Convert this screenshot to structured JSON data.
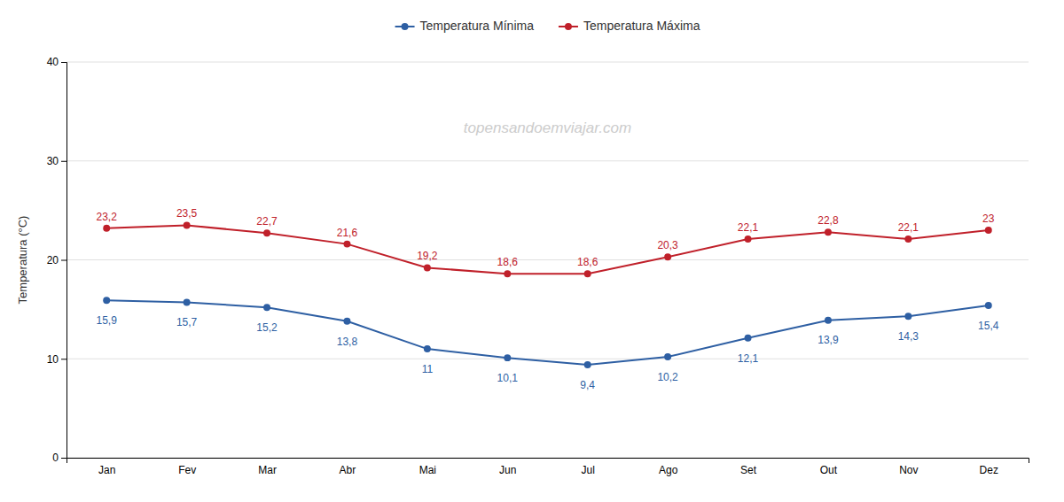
{
  "chart_data": {
    "type": "line",
    "categories": [
      "Jan",
      "Fev",
      "Mar",
      "Abr",
      "Mai",
      "Jun",
      "Jul",
      "Ago",
      "Set",
      "Out",
      "Nov",
      "Dez"
    ],
    "series": [
      {
        "name": "Temperatura Mínima",
        "color": "#2E5FA3",
        "marker": "circle",
        "values": [
          15.9,
          15.7,
          15.2,
          13.8,
          11.0,
          10.1,
          9.4,
          10.2,
          12.1,
          13.9,
          14.3,
          15.4
        ],
        "value_labels": [
          "15,9",
          "15,7",
          "15,2",
          "13,8",
          "11",
          "10,1",
          "9,4",
          "10,2",
          "12,1",
          "13,9",
          "14,3",
          "15,4"
        ]
      },
      {
        "name": "Temperatura Máxima",
        "color": "#C0202A",
        "marker": "circle",
        "values": [
          23.2,
          23.5,
          22.7,
          21.6,
          19.2,
          18.6,
          18.6,
          20.3,
          22.1,
          22.8,
          22.1,
          23.0
        ],
        "value_labels": [
          "23,2",
          "23,5",
          "22,7",
          "21,6",
          "19,2",
          "18,6",
          "18,6",
          "20,3",
          "22,1",
          "22,8",
          "22,1",
          "23"
        ]
      }
    ],
    "ylabel": "Temperatura (°C)",
    "annotations": [
      "topensandoemviajar.com"
    ],
    "ylim": [
      0,
      40
    ],
    "yticks": [
      0,
      10,
      20,
      30,
      40
    ],
    "grid": true,
    "data_labels": true,
    "legend": "top"
  }
}
